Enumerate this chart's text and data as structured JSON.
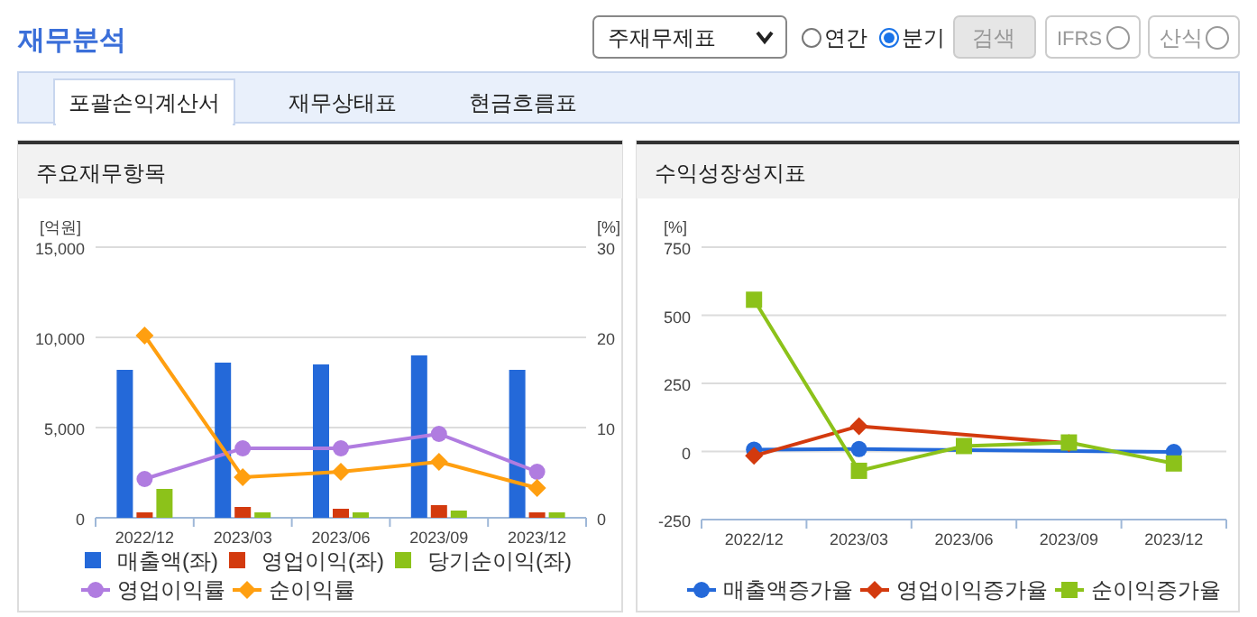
{
  "chart_data": [
    {
      "type": "bar",
      "title": "주요재무항목",
      "categories": [
        "2022/12",
        "2023/03",
        "2023/06",
        "2023/09",
        "2023/12"
      ],
      "annotations": [
        "재무분석",
        "주재무제표",
        "연간",
        "분기",
        "검색",
        "IFRS",
        "산식",
        "포괄손익계산서",
        "재무상태표",
        "현금흐름표"
      ],
      "ylabel": "[억원]",
      "y2label": "[%]",
      "ylim": [
        0,
        15000
      ],
      "yticks": [
        0,
        {
          "value": 5000,
          "label": "5,000"
        },
        {
          "value": 10000,
          "label": "10,000"
        },
        {
          "value": 15000,
          "label": "15,000"
        }
      ],
      "y2lim": [
        0,
        30
      ],
      "y2ticks": [
        0,
        10,
        20,
        30
      ],
      "grid": "y",
      "legend": "bottom",
      "series": [
        {
          "name": "매출액(좌)",
          "color": "#2469d9",
          "values": [
            8200,
            8600,
            8500,
            9000,
            8200
          ]
        },
        {
          "name": "영업이익(좌)",
          "color": "#d33a0e",
          "values": [
            300,
            600,
            500,
            700,
            300
          ]
        },
        {
          "name": "당기순이익(좌)",
          "color": "#8cc21a",
          "values": [
            1600,
            300,
            300,
            400,
            300
          ]
        },
        {
          "name": "영업이익률",
          "type": "line",
          "axis": "y2",
          "marker": "circle",
          "color": "#b07ce0",
          "values": [
            4.3,
            7.7,
            7.7,
            9.3,
            5.1
          ]
        },
        {
          "name": "순이익률",
          "type": "line",
          "axis": "y2",
          "marker": "diamond",
          "color": "#ff9f10",
          "values": [
            20.2,
            4.5,
            5.1,
            6.2,
            3.3
          ]
        }
      ]
    },
    {
      "type": "line",
      "title": "수익성장성지표",
      "categories": [
        "2022/12",
        "2023/03",
        "2023/06",
        "2023/09",
        "2023/12"
      ],
      "ylabel": "[%]",
      "ylim": [
        -250,
        750
      ],
      "yticks": [
        -250,
        0,
        250,
        500,
        750
      ],
      "grid": "y",
      "legend": "bottom",
      "series": [
        {
          "name": "매출액증가율",
          "marker": "circle",
          "color": "#2469d9",
          "values": [
            7,
            9,
            null,
            null,
            -2
          ]
        },
        {
          "name": "영업이익증가율",
          "marker": "diamond",
          "color": "#d33a0e",
          "values": [
            -16,
            93,
            null,
            31,
            null
          ]
        },
        {
          "name": "순이익증가율",
          "marker": "square",
          "color": "#8cc21a",
          "values": [
            557,
            -71,
            20,
            33,
            -44
          ]
        }
      ]
    }
  ]
}
